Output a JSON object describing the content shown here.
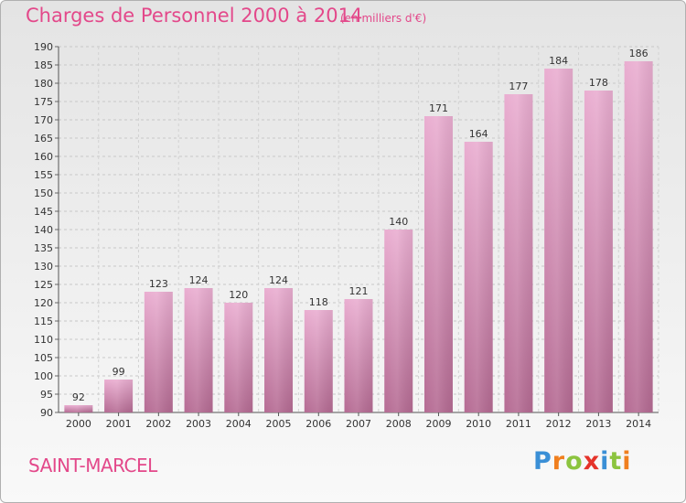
{
  "header": {
    "title": "Charges de Personnel 2000 à 2014",
    "subtitle": "(en milliers d'€)"
  },
  "footer": {
    "place": "SAINT-MARCEL",
    "logo": {
      "letters": [
        "P",
        "r",
        "o",
        "x",
        "i",
        "t",
        "i"
      ],
      "colors": [
        "#3a8fd6",
        "#f07f1e",
        "#8cc43f",
        "#e5332a",
        "#3a8fd6",
        "#8cc43f",
        "#f07f1e"
      ]
    }
  },
  "chart_data": {
    "type": "bar",
    "categories": [
      "2000",
      "2001",
      "2002",
      "2003",
      "2004",
      "2005",
      "2006",
      "2007",
      "2008",
      "2009",
      "2010",
      "2011",
      "2012",
      "2013",
      "2014"
    ],
    "values": [
      92,
      99,
      123,
      124,
      120,
      124,
      118,
      121,
      140,
      171,
      164,
      177,
      184,
      178,
      186
    ],
    "data_labels": [
      "92",
      "99",
      "123",
      "124",
      "120",
      "124",
      "118",
      "121",
      "140",
      "171",
      "164",
      "177",
      "184",
      "178",
      "186"
    ],
    "title": "Charges de Personnel 2000 à 2014",
    "xlabel": "",
    "ylabel": "",
    "ylim": [
      90,
      190
    ],
    "yticks": [
      90,
      95,
      100,
      105,
      110,
      115,
      120,
      125,
      130,
      135,
      140,
      145,
      150,
      155,
      160,
      165,
      170,
      175,
      180,
      185,
      190
    ],
    "grid": true,
    "bar_color": "#d480ac"
  }
}
